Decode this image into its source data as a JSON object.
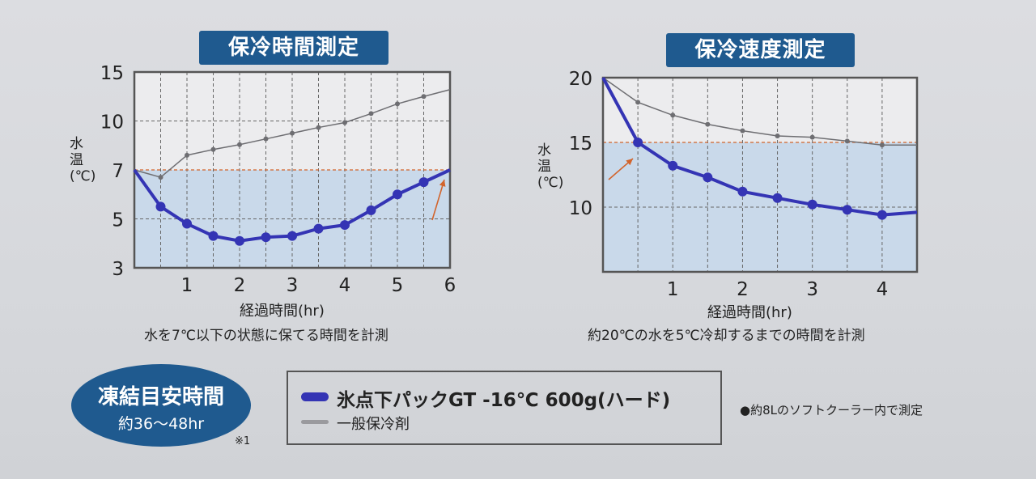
{
  "colors": {
    "product": "#3434b4",
    "generic": "#6e6e72",
    "threshold": "#d2642c",
    "shade": "#c9d9ea",
    "title_bg": "#1f5a8f"
  },
  "chart_data": [
    {
      "type": "line",
      "title": "保冷時間測定",
      "xlabel": "経過時間(hr)",
      "ylabel": "水温(℃)",
      "caption": "水を7℃以下の状態に保てる時間を計測",
      "xlim": [
        0,
        6
      ],
      "ylim": [
        3,
        15
      ],
      "x_ticks": [
        "1",
        "2",
        "3",
        "4",
        "5",
        "6"
      ],
      "y_ticks": [
        "3",
        "5",
        "7",
        "10",
        "15"
      ],
      "y_scale": "non-uniform (ticks evenly spaced)",
      "threshold": 7,
      "grid": true,
      "x": [
        0,
        0.5,
        1,
        1.5,
        2,
        2.5,
        3,
        3.5,
        4,
        4.5,
        5,
        5.5,
        6
      ],
      "series": [
        {
          "name": "氷点下パックGT -16℃ 600g(ハード)",
          "values": [
            7,
            5.5,
            4.8,
            4.3,
            4.1,
            4.25,
            4.3,
            4.6,
            4.75,
            5.35,
            6.0,
            6.5,
            7
          ]
        },
        {
          "name": "一般保冷剤",
          "values": [
            7,
            6.7,
            7.9,
            8.25,
            8.55,
            8.9,
            9.25,
            9.6,
            9.9,
            10.75,
            11.75,
            12.5,
            13.2
          ]
        }
      ]
    },
    {
      "type": "line",
      "title": "保冷速度測定",
      "xlabel": "経過時間(hr)",
      "ylabel": "水温(℃)",
      "caption": "約20℃の水を5℃冷却するまでの時間を計測",
      "xlim": [
        0,
        4.5
      ],
      "ylim": [
        5,
        20
      ],
      "x_ticks": [
        "1",
        "2",
        "3",
        "4"
      ],
      "y_ticks": [
        "10",
        "15",
        "20"
      ],
      "threshold": 15,
      "grid": true,
      "x": [
        0,
        0.5,
        1,
        1.5,
        2,
        2.5,
        3,
        3.5,
        4,
        4.5
      ],
      "series": [
        {
          "name": "氷点下パックGT -16℃ 600g(ハード)",
          "values": [
            20,
            15,
            13.2,
            12.3,
            11.2,
            10.7,
            10.2,
            9.8,
            9.4,
            9.6
          ]
        },
        {
          "name": "一般保冷剤",
          "values": [
            20,
            18.1,
            17.1,
            16.4,
            15.9,
            15.5,
            15.4,
            15.1,
            14.8,
            14.8
          ]
        }
      ]
    }
  ],
  "badge": {
    "title": "凍結目安時間",
    "value": "約36〜48hr",
    "note": "※1"
  },
  "legend": {
    "product": "氷点下パックGT -16℃ 600g(ハード)",
    "generic": "一般保冷剤"
  },
  "footnote": "●約8Lのソフトクーラー内で測定"
}
